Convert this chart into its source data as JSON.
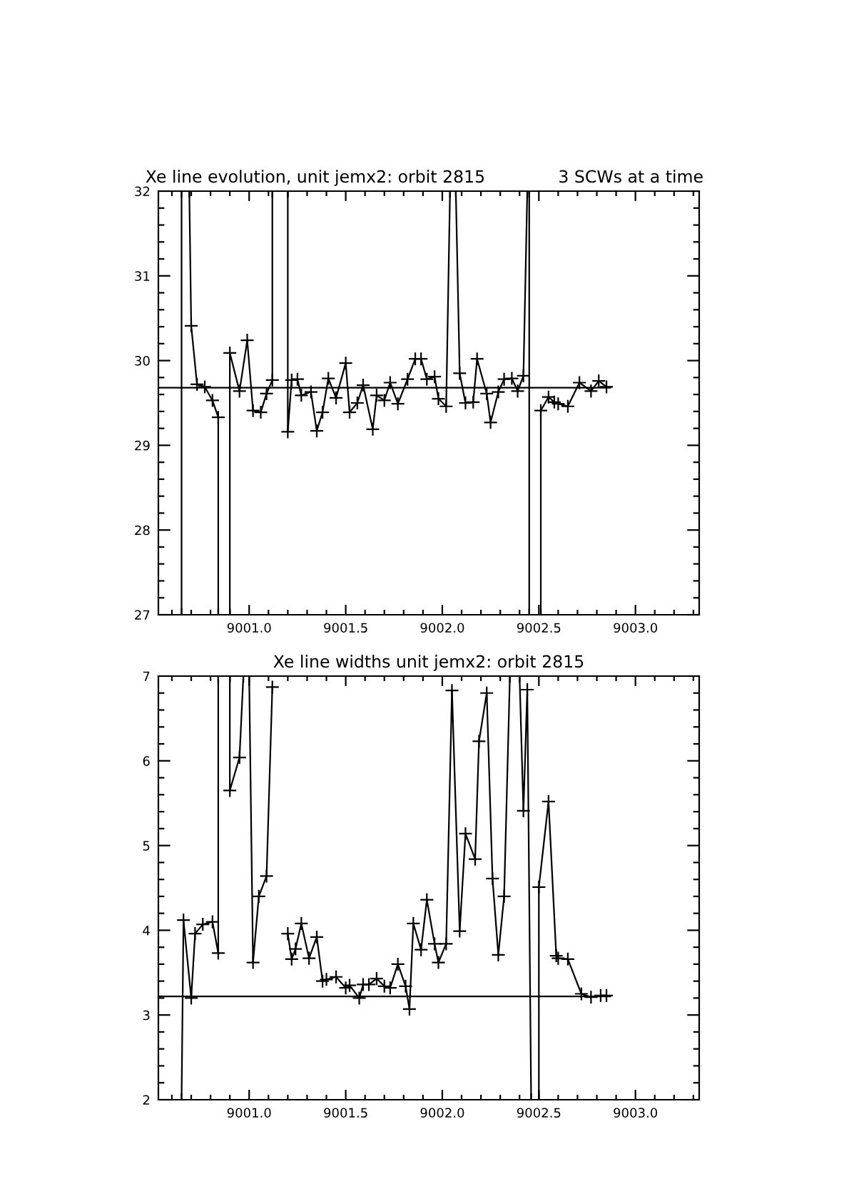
{
  "chart_data": [
    {
      "type": "line",
      "title": "Xe line evolution, unit jemx2: orbit 2815",
      "subtitle": "3 SCWs at a time",
      "marker": "cross",
      "xlim": [
        9000.53,
        9003.33
      ],
      "xticks": [
        {
          "value": 9000.6,
          "label": null
        },
        {
          "value": 9000.7,
          "label": null
        },
        {
          "value": 9000.8,
          "label": null
        },
        {
          "value": 9000.9,
          "label": null
        },
        {
          "value": 9001.0,
          "label": "9001.0"
        },
        {
          "value": 9001.1,
          "label": null
        },
        {
          "value": 9001.2,
          "label": null
        },
        {
          "value": 9001.3,
          "label": null
        },
        {
          "value": 9001.4,
          "label": null
        },
        {
          "value": 9001.5,
          "label": "9001.5"
        },
        {
          "value": 9001.6,
          "label": null
        },
        {
          "value": 9001.7,
          "label": null
        },
        {
          "value": 9001.8,
          "label": null
        },
        {
          "value": 9001.9,
          "label": null
        },
        {
          "value": 9002.0,
          "label": "9002.0"
        },
        {
          "value": 9002.1,
          "label": null
        },
        {
          "value": 9002.2,
          "label": null
        },
        {
          "value": 9002.3,
          "label": null
        },
        {
          "value": 9002.4,
          "label": null
        },
        {
          "value": 9002.5,
          "label": "9002.5"
        },
        {
          "value": 9002.6,
          "label": null
        },
        {
          "value": 9002.7,
          "label": null
        },
        {
          "value": 9002.8,
          "label": null
        },
        {
          "value": 9002.9,
          "label": null
        },
        {
          "value": 9003.0,
          "label": "9003.0"
        },
        {
          "value": 9003.1,
          "label": null
        },
        {
          "value": 9003.2,
          "label": null
        },
        {
          "value": 9003.3,
          "label": null
        }
      ],
      "ylim": [
        27,
        32
      ],
      "yticks": [
        27,
        {
          "value": 27.2,
          "label": null
        },
        {
          "value": 27.4,
          "label": null
        },
        {
          "value": 27.6,
          "label": null
        },
        {
          "value": 27.8,
          "label": null
        },
        28,
        {
          "value": 28.2,
          "label": null
        },
        {
          "value": 28.4,
          "label": null
        },
        {
          "value": 28.6,
          "label": null
        },
        {
          "value": 28.8,
          "label": null
        },
        29,
        {
          "value": 29.2,
          "label": null
        },
        {
          "value": 29.4,
          "label": null
        },
        {
          "value": 29.6,
          "label": null
        },
        {
          "value": 29.8,
          "label": null
        },
        30,
        {
          "value": 30.2,
          "label": null
        },
        {
          "value": 30.4,
          "label": null
        },
        {
          "value": 30.6,
          "label": null
        },
        {
          "value": 30.8,
          "label": null
        },
        31,
        {
          "value": 31.2,
          "label": null
        },
        {
          "value": 31.4,
          "label": null
        },
        {
          "value": 31.6,
          "label": null
        },
        {
          "value": 31.8,
          "label": null
        },
        32
      ],
      "series": [
        {
          "color": "#000000",
          "x": [
            9000.65,
            9000.65,
            9000.69,
            9000.7,
            9000.73,
            9000.77,
            9000.81,
            9000.84,
            9000.84,
            9000.9,
            9000.9,
            9000.95,
            9000.99,
            9001.02,
            9001.06,
            9001.09,
            9001.12,
            9001.12,
            9001.2,
            9001.2,
            9001.22,
            9001.25,
            9001.27,
            9001.32,
            9001.35,
            9001.38,
            9001.41,
            9001.45,
            9001.5,
            9001.52,
            9001.56,
            9001.59,
            9001.64,
            9001.66,
            9001.7,
            9001.73,
            9001.77,
            9001.82,
            9001.86,
            9001.89,
            9001.92,
            9001.96,
            9001.98,
            9002.02,
            9002.04,
            9002.07,
            9002.09,
            9002.12,
            9002.16,
            9002.18,
            9002.23,
            9002.25,
            9002.29,
            9002.32,
            9002.36,
            9002.39,
            9002.42,
            9002.44,
            9002.45,
            9002.45,
            9002.51,
            9002.51,
            9002.55,
            9002.58,
            9002.6,
            9002.65,
            9002.71,
            9002.77,
            9002.81,
            9002.85
          ],
          "values": [
            27,
            32,
            32,
            30.41,
            29.72,
            29.69,
            29.53,
            29.33,
            27,
            27,
            30.09,
            29.64,
            30.24,
            29.41,
            29.39,
            29.61,
            29.77,
            32,
            32,
            29.16,
            29.77,
            29.78,
            29.59,
            29.63,
            29.17,
            29.39,
            29.79,
            29.56,
            29.97,
            29.39,
            29.5,
            29.71,
            29.19,
            29.59,
            29.53,
            29.74,
            29.49,
            29.78,
            30.02,
            30.02,
            29.78,
            29.81,
            29.55,
            29.46,
            32,
            32,
            29.85,
            29.5,
            29.51,
            30.02,
            29.61,
            29.27,
            29.63,
            29.78,
            29.79,
            29.64,
            29.82,
            32,
            32,
            27,
            27,
            29.41,
            29.57,
            29.51,
            29.49,
            29.46,
            29.74,
            29.64,
            29.76,
            29.69
          ]
        },
        {
          "type": "line",
          "marker": "none",
          "color": "#000000",
          "x": [
            9000.53,
            9002.87
          ],
          "values": [
            29.68,
            29.68
          ]
        }
      ]
    },
    {
      "type": "line",
      "title": "Xe line widths unit jemx2: orbit 2815",
      "marker": "cross",
      "xlim": [
        9000.53,
        9003.33
      ],
      "xticks": [
        {
          "value": 9000.6,
          "label": null
        },
        {
          "value": 9000.7,
          "label": null
        },
        {
          "value": 9000.8,
          "label": null
        },
        {
          "value": 9000.9,
          "label": null
        },
        {
          "value": 9001.0,
          "label": "9001.0"
        },
        {
          "value": 9001.1,
          "label": null
        },
        {
          "value": 9001.2,
          "label": null
        },
        {
          "value": 9001.3,
          "label": null
        },
        {
          "value": 9001.4,
          "label": null
        },
        {
          "value": 9001.5,
          "label": "9001.5"
        },
        {
          "value": 9001.6,
          "label": null
        },
        {
          "value": 9001.7,
          "label": null
        },
        {
          "value": 9001.8,
          "label": null
        },
        {
          "value": 9001.9,
          "label": null
        },
        {
          "value": 9002.0,
          "label": "9002.0"
        },
        {
          "value": 9002.1,
          "label": null
        },
        {
          "value": 9002.2,
          "label": null
        },
        {
          "value": 9002.3,
          "label": null
        },
        {
          "value": 9002.4,
          "label": null
        },
        {
          "value": 9002.5,
          "label": "9002.5"
        },
        {
          "value": 9002.6,
          "label": null
        },
        {
          "value": 9002.7,
          "label": null
        },
        {
          "value": 9002.8,
          "label": null
        },
        {
          "value": 9002.9,
          "label": null
        },
        {
          "value": 9003.0,
          "label": "9003.0"
        },
        {
          "value": 9003.1,
          "label": null
        },
        {
          "value": 9003.2,
          "label": null
        },
        {
          "value": 9003.3,
          "label": null
        }
      ],
      "ylim": [
        2,
        7
      ],
      "yticks": [
        2,
        {
          "value": 2.2,
          "label": null
        },
        {
          "value": 2.4,
          "label": null
        },
        {
          "value": 2.6,
          "label": null
        },
        {
          "value": 2.8,
          "label": null
        },
        3,
        {
          "value": 3.2,
          "label": null
        },
        {
          "value": 3.4,
          "label": null
        },
        {
          "value": 3.6,
          "label": null
        },
        {
          "value": 3.8,
          "label": null
        },
        4,
        {
          "value": 4.2,
          "label": null
        },
        {
          "value": 4.4,
          "label": null
        },
        {
          "value": 4.6,
          "label": null
        },
        {
          "value": 4.8,
          "label": null
        },
        5,
        {
          "value": 5.2,
          "label": null
        },
        {
          "value": 5.4,
          "label": null
        },
        {
          "value": 5.6,
          "label": null
        },
        {
          "value": 5.8,
          "label": null
        },
        6,
        {
          "value": 6.2,
          "label": null
        },
        {
          "value": 6.4,
          "label": null
        },
        {
          "value": 6.6,
          "label": null
        },
        {
          "value": 6.8,
          "label": null
        },
        7
      ],
      "series": [
        {
          "color": "#000000",
          "x": [
            9000.65,
            9000.66,
            9000.7,
            9000.72,
            9000.76,
            9000.81,
            9000.84,
            9000.84,
            9000.9,
            9000.9,
            9000.95,
            9000.97,
            9001.0,
            9001.02,
            9001.05,
            9001.09,
            9001.12,
            9001.16,
            9001.2,
            9001.22,
            9001.24,
            9001.27,
            9001.31,
            9001.35,
            9001.38,
            9001.4,
            9001.45,
            9001.5,
            9001.52,
            9001.57,
            9001.59,
            9001.62,
            9001.66,
            9001.7,
            9001.73,
            9001.77,
            9001.81,
            9001.83,
            9001.85,
            9001.89,
            9001.92,
            9001.96,
            9001.98,
            9002.02,
            9002.05,
            9002.09,
            9002.12,
            9002.17,
            9002.19,
            9002.23,
            9002.26,
            9002.29,
            9002.32,
            9002.35,
            9002.4,
            9002.42,
            9002.44,
            9002.46,
            9002.5,
            9002.5,
            9002.55,
            9002.59,
            9002.6,
            9002.65,
            9002.72,
            9002.77,
            9002.82,
            9002.85
          ],
          "values": [
            2,
            4.12,
            3.2,
            3.96,
            4.07,
            4.1,
            3.73,
            7,
            7,
            5.65,
            6.04,
            7,
            7,
            3.62,
            4.4,
            4.64,
            6.87,
            null,
            3.96,
            3.66,
            3.78,
            4.08,
            3.67,
            3.92,
            3.4,
            3.42,
            3.45,
            3.32,
            3.35,
            3.2,
            3.36,
            3.36,
            3.43,
            3.34,
            3.32,
            3.6,
            3.34,
            3.07,
            4.08,
            3.77,
            4.36,
            3.84,
            3.62,
            3.84,
            6.83,
            3.99,
            5.14,
            4.84,
            6.23,
            6.8,
            4.61,
            3.71,
            4.4,
            7,
            7,
            5.41,
            6.84,
            2,
            2,
            4.51,
            5.52,
            3.7,
            3.67,
            3.66,
            3.25,
            3.21,
            3.23,
            3.23
          ]
        },
        {
          "type": "line",
          "marker": "none",
          "color": "#000000",
          "x": [
            9000.53,
            9002.87
          ],
          "values": [
            3.22,
            3.22
          ]
        }
      ]
    }
  ]
}
